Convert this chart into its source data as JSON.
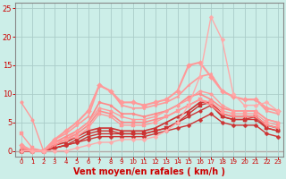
{
  "x": [
    0,
    1,
    2,
    3,
    4,
    5,
    6,
    7,
    8,
    9,
    10,
    11,
    12,
    13,
    14,
    15,
    16,
    17,
    18,
    19,
    20,
    21,
    22,
    23
  ],
  "series": [
    {
      "y": [
        0,
        0,
        0,
        0.5,
        1,
        1.5,
        2,
        2.5,
        2.5,
        2.5,
        2.5,
        2.5,
        3,
        3.5,
        4,
        4.5,
        5.5,
        6.5,
        5,
        4.5,
        4.5,
        4.5,
        3,
        2.5
      ],
      "color": "#cc3333",
      "lw": 1.0,
      "ms": 2.5
    },
    {
      "y": [
        0,
        0,
        0,
        0.5,
        1,
        1.5,
        2.5,
        3,
        3,
        3,
        3,
        3,
        3.5,
        4,
        5,
        6,
        7,
        8,
        6,
        5.5,
        5.5,
        5.5,
        4,
        3.5
      ],
      "color": "#cc3333",
      "lw": 1.0,
      "ms": 2.5
    },
    {
      "y": [
        0,
        0,
        0,
        0.5,
        1,
        2,
        3,
        3.5,
        3.5,
        3,
        3,
        3,
        3.5,
        4,
        5,
        6.5,
        8,
        8.5,
        6,
        5.5,
        5.5,
        6,
        4,
        3.5
      ],
      "color": "#cc3333",
      "lw": 1.0,
      "ms": 2.5
    },
    {
      "y": [
        0,
        0,
        0,
        1,
        1.5,
        2.5,
        3.5,
        4,
        4,
        3.5,
        3.5,
        3.5,
        4,
        5,
        6,
        7,
        8.5,
        8.5,
        6.5,
        6,
        6,
        6,
        4.5,
        4
      ],
      "color": "#cc3333",
      "lw": 1.2,
      "ms": 2.5
    },
    {
      "y": [
        0.5,
        0,
        0,
        1,
        2,
        3,
        4.5,
        7,
        6.5,
        5,
        5,
        5,
        5.5,
        6,
        7,
        8,
        9,
        8,
        6.5,
        6,
        6,
        6,
        4.5,
        4
      ],
      "color": "#ff8888",
      "lw": 1.2,
      "ms": 2.5
    },
    {
      "y": [
        0.5,
        0,
        0,
        1.5,
        2.5,
        3.5,
        5,
        8.5,
        8,
        6.5,
        6.5,
        6,
        6.5,
        7,
        8,
        9.5,
        10,
        9,
        7.5,
        7,
        7,
        7,
        5.5,
        5
      ],
      "color": "#ff8888",
      "lw": 1.2,
      "ms": 2.5
    },
    {
      "y": [
        1,
        0,
        0,
        2,
        3,
        4.5,
        6,
        11.5,
        10.5,
        8,
        7.5,
        7.5,
        8,
        8.5,
        9.5,
        11.5,
        13,
        13.5,
        10.5,
        9.5,
        9,
        9,
        7,
        6.5
      ],
      "color": "#ff9999",
      "lw": 1.2,
      "ms": 2.5
    },
    {
      "y": [
        1,
        0,
        0,
        2,
        3.5,
        5,
        7,
        11.5,
        10.5,
        8.5,
        8.5,
        8,
        8.5,
        9,
        10.5,
        15,
        15.5,
        13,
        10.5,
        9.5,
        9,
        9,
        7.5,
        7
      ],
      "color": "#ff9999",
      "lw": 1.5,
      "ms": 3
    },
    {
      "y": [
        8.5,
        5.5,
        0,
        1.5,
        2,
        3.5,
        5,
        7.5,
        7,
        6,
        5.5,
        5.5,
        6,
        7,
        8,
        9,
        10.5,
        10,
        8,
        7,
        7,
        7,
        5.5,
        5
      ],
      "color": "#ff9999",
      "lw": 1.0,
      "ms": 2.5
    },
    {
      "y": [
        3,
        0.5,
        0,
        1.5,
        2,
        2.5,
        4,
        6.5,
        6,
        4.5,
        4.5,
        4.5,
        5,
        6,
        7,
        8,
        9,
        8.5,
        7,
        6.5,
        6.5,
        6.5,
        5,
        4.5
      ],
      "color": "#ff9999",
      "lw": 1.0,
      "ms": 2.5
    },
    {
      "y": [
        0,
        0,
        0,
        0,
        0,
        0.5,
        1,
        1.5,
        1.5,
        2,
        2,
        2,
        2.5,
        3.5,
        5,
        8,
        13,
        23.5,
        19.5,
        10,
        8,
        8,
        8.5,
        7
      ],
      "color": "#ffaaaa",
      "lw": 1.0,
      "ms": 2.5
    }
  ],
  "xlabel": "Vent moyen/en rafales ( km/h )",
  "ylim": [
    -1,
    26
  ],
  "xlim": [
    -0.5,
    23.5
  ],
  "yticks": [
    0,
    5,
    10,
    15,
    20,
    25
  ],
  "xticks": [
    0,
    1,
    2,
    3,
    4,
    5,
    6,
    7,
    8,
    9,
    10,
    11,
    12,
    13,
    14,
    15,
    16,
    17,
    18,
    19,
    20,
    21,
    22,
    23
  ],
  "bg_color": "#cceee8",
  "grid_color": "#aaccc8",
  "label_color": "#cc0000",
  "tick_color": "#cc0000",
  "spine_color": "#888888",
  "hline_color": "#cc0000",
  "xlabel_fontsize": 7,
  "ytick_fontsize": 6,
  "xtick_fontsize": 5
}
